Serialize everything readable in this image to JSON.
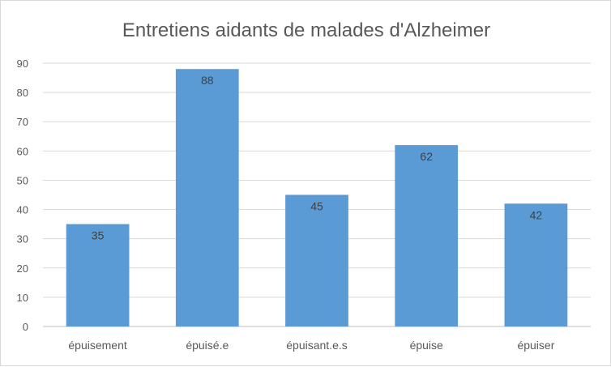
{
  "chart_data": {
    "type": "bar",
    "title": "Entretiens aidants de malades d'Alzheimer",
    "categories": [
      "épuisement",
      "épuisé.e",
      "épuisant.e.s",
      "épuise",
      "épuiser"
    ],
    "values": [
      35,
      88,
      45,
      62,
      42
    ],
    "xlabel": "",
    "ylabel": "",
    "ylim": [
      0,
      90
    ],
    "yticks": [
      0,
      10,
      20,
      30,
      40,
      50,
      60,
      70,
      80,
      90
    ],
    "grid": true,
    "legend": "none",
    "data_labels": "inside-end",
    "bar_color": "#5b9bd5"
  }
}
